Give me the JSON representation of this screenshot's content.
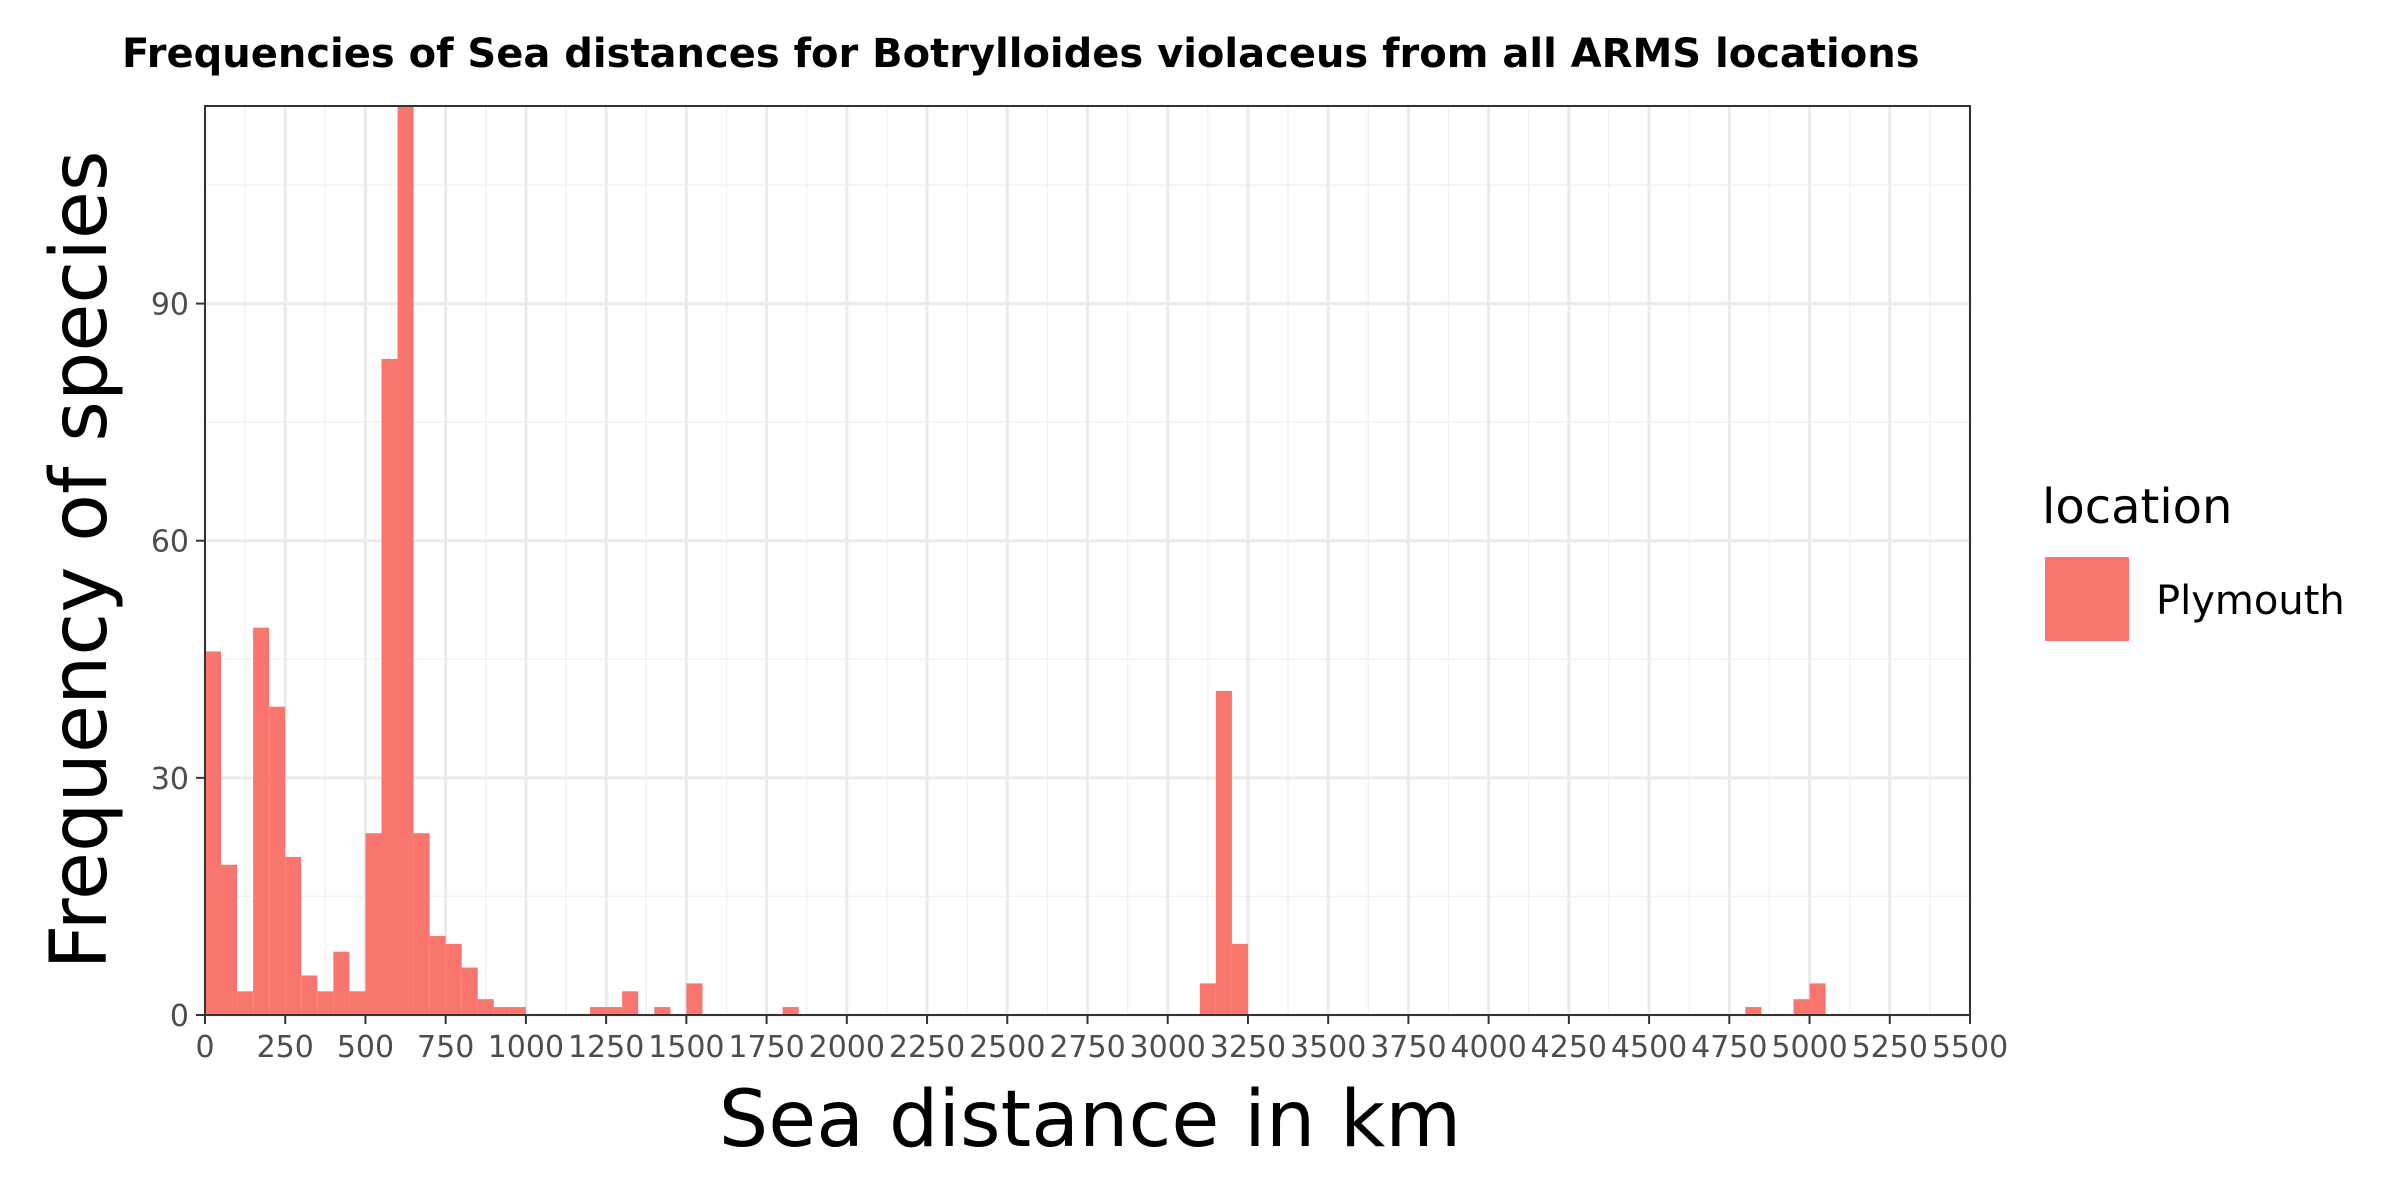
{
  "chart_data": {
    "type": "bar",
    "title": "Frequencies of Sea distances for Botrylloides violaceus from all ARMS locations",
    "xlabel": "Sea distance in km",
    "ylabel": "Frequency of species",
    "xlim": [
      0,
      5500
    ],
    "ylim": [
      0,
      115
    ],
    "x_ticks": [
      "0",
      "250",
      "500",
      "750",
      "1000",
      "1250",
      "1500",
      "1750",
      "2000",
      "2250",
      "2500",
      "2750",
      "3000",
      "3250",
      "3500",
      "3750",
      "4000",
      "4250",
      "4500",
      "4750",
      "5000",
      "5250",
      "5500"
    ],
    "y_ticks": [
      "0",
      "30",
      "60",
      "90"
    ],
    "grid": true,
    "bin_width": 50,
    "legend": {
      "title": "location",
      "position": "right",
      "entries": [
        "Plymouth"
      ]
    },
    "series": [
      {
        "name": "Plymouth",
        "color": "#F8766D",
        "bins": [
          {
            "x": 0,
            "value": 46
          },
          {
            "x": 50,
            "value": 19
          },
          {
            "x": 100,
            "value": 3
          },
          {
            "x": 150,
            "value": 49
          },
          {
            "x": 200,
            "value": 39
          },
          {
            "x": 250,
            "value": 20
          },
          {
            "x": 300,
            "value": 5
          },
          {
            "x": 350,
            "value": 3
          },
          {
            "x": 400,
            "value": 8
          },
          {
            "x": 450,
            "value": 3
          },
          {
            "x": 500,
            "value": 23
          },
          {
            "x": 550,
            "value": 83
          },
          {
            "x": 600,
            "value": 115
          },
          {
            "x": 650,
            "value": 23
          },
          {
            "x": 700,
            "value": 10
          },
          {
            "x": 750,
            "value": 9
          },
          {
            "x": 800,
            "value": 6
          },
          {
            "x": 850,
            "value": 2
          },
          {
            "x": 900,
            "value": 1
          },
          {
            "x": 950,
            "value": 1
          },
          {
            "x": 1200,
            "value": 1
          },
          {
            "x": 1250,
            "value": 1
          },
          {
            "x": 1300,
            "value": 3
          },
          {
            "x": 1400,
            "value": 1
          },
          {
            "x": 1500,
            "value": 4
          },
          {
            "x": 1800,
            "value": 1
          },
          {
            "x": 3100,
            "value": 4
          },
          {
            "x": 3150,
            "value": 41
          },
          {
            "x": 3200,
            "value": 9
          },
          {
            "x": 4800,
            "value": 1
          },
          {
            "x": 4950,
            "value": 2
          },
          {
            "x": 5000,
            "value": 4
          }
        ]
      }
    ]
  }
}
